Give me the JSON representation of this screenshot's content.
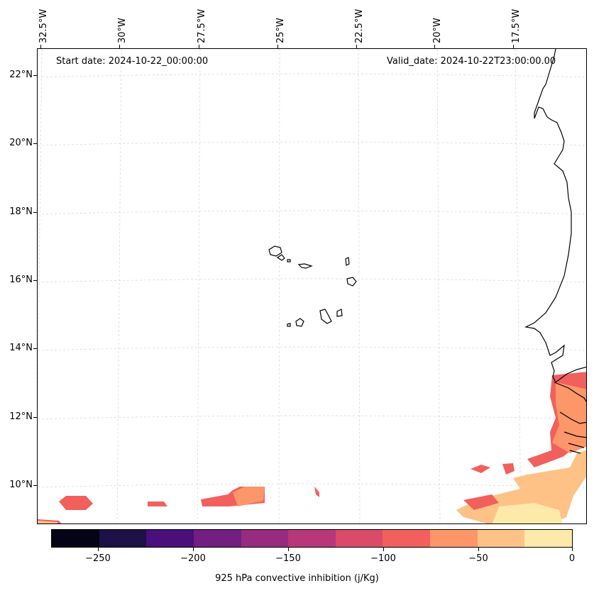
{
  "annotations": {
    "start_date": "Start date: 2024-10-22_00:00:00",
    "valid_date": "Valid_date: 2024-10-22T23:00:00.00"
  },
  "map": {
    "longitude_labels": [
      "32.5°W",
      "30°W",
      "27.5°W",
      "25°W",
      "22.5°W",
      "20°W",
      "17.5°W"
    ],
    "latitude_labels": [
      "22°N",
      "20°N",
      "18°N",
      "16°N",
      "14°N",
      "12°N",
      "10°N"
    ],
    "field": "925 hPa convective inhibition",
    "colors": {
      "coast": "#000000",
      "grid": "#d9d9d9",
      "cin_-100_-75": "#f1605d",
      "cin_-75_-50": "#fd9668",
      "cin_-50_-25": "#fec287",
      "cin_-25_0": "#fde9a9"
    }
  },
  "colorbar": {
    "title": "925 hPa convective inhibition (j/Kg)",
    "tick_labels": [
      "−250",
      "−200",
      "−150",
      "−100",
      "−50",
      "0"
    ],
    "colors": [
      "#050416",
      "#1d1147",
      "#4a0f7a",
      "#721f81",
      "#962b7f",
      "#b7377a",
      "#da4b6a",
      "#f1605d",
      "#fd9668",
      "#fec287",
      "#fde9a9"
    ]
  }
}
